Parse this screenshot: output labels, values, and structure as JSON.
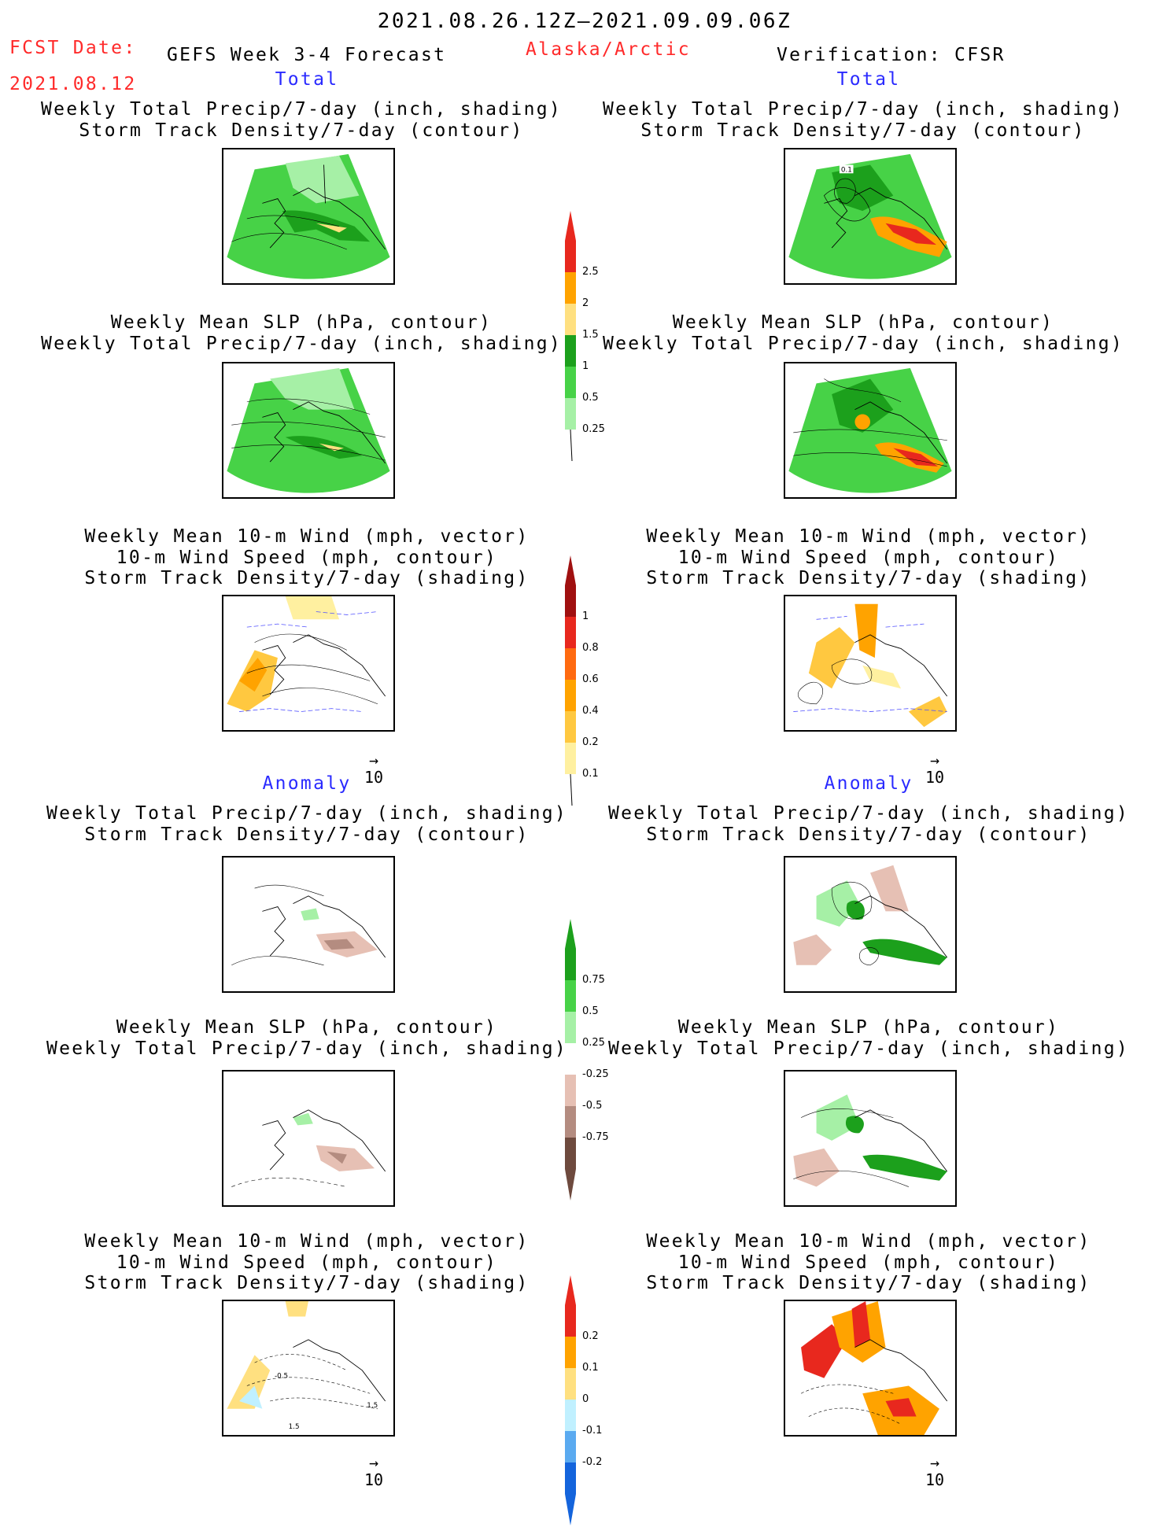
{
  "header": {
    "date_range": "2021.08.26.12Z–2021.09.09.06Z",
    "fcst_label": "FCST Date:",
    "fcst_date": "2021.08.12",
    "model": "GEFS Week 3-4 Forecast",
    "region": "Alaska/Arctic",
    "verification": "Verification: CFSR"
  },
  "sections": {
    "left_total": "Total",
    "right_total": "Total",
    "left_anomaly": "Anomaly",
    "right_anomaly": "Anomaly"
  },
  "titles": {
    "precip_storm": [
      "Weekly Total Precip/7-day (inch, shading)",
      "Storm Track Density/7-day (contour)"
    ],
    "slp_precip": [
      "Weekly Mean SLP (hPa, contour)",
      "Weekly Total Precip/7-day (inch, shading)"
    ],
    "wind_storm": [
      "Weekly Mean 10-m Wind (mph, vector)",
      "10-m Wind Speed (mph, contour)",
      "Storm Track Density/7-day (shading)"
    ]
  },
  "vector_scale": "10",
  "contour_labels": {
    "obs_precip": "0.1",
    "anom_wind_a": "-0.5",
    "anom_wind_b": "1.5",
    "anom_wind_c": "1.5"
  },
  "colorbars": {
    "precip_total": {
      "labels": [
        "2.5",
        "2",
        "1.5",
        "1",
        "0.5",
        "0.25"
      ],
      "colors": [
        "#e8281e",
        "#ffa300",
        "#ffe080",
        "#1ca01c",
        "#47d247",
        "#a6f0a6"
      ]
    },
    "storm_total": {
      "labels": [
        "1",
        "0.8",
        "0.6",
        "0.4",
        "0.2",
        "0.1"
      ],
      "colors": [
        "#a01010",
        "#e8281e",
        "#ff6a10",
        "#ffa300",
        "#ffc840",
        "#fff0a0"
      ]
    },
    "precip_anom": {
      "labels": [
        "0.75",
        "0.5",
        "0.25",
        "-0.25",
        "-0.5",
        "-0.75"
      ],
      "colors": [
        "#1ca01c",
        "#47d247",
        "#a6f0a6",
        "#ffffff",
        "#e6c0b4",
        "#b48c80",
        "#6e4a3e"
      ]
    },
    "storm_anom": {
      "labels": [
        "0.2",
        "0.1",
        "0",
        "-0.1",
        "-0.2"
      ],
      "colors": [
        "#e8281e",
        "#ffa300",
        "#ffe080",
        "#c0f0ff",
        "#5aaaf0",
        "#1464dc"
      ]
    }
  }
}
